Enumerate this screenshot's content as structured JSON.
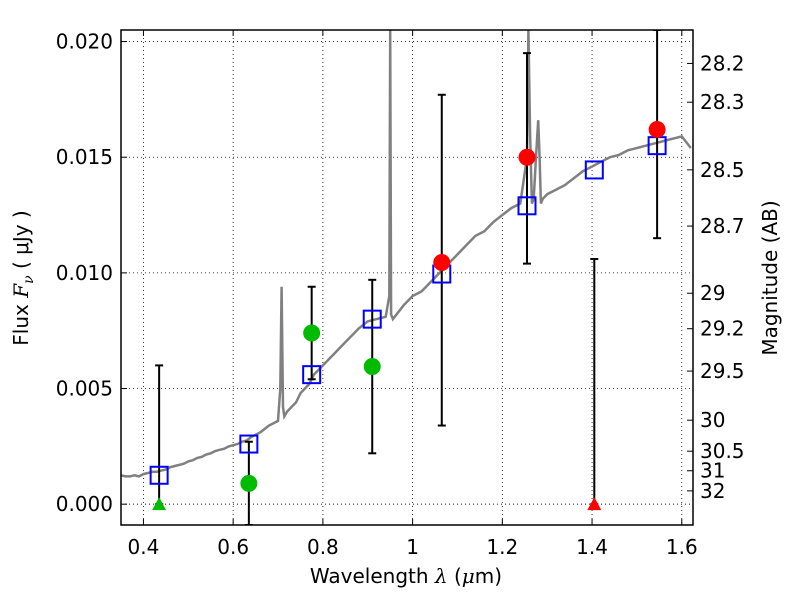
{
  "chart_data": {
    "type": "scatter",
    "title": "",
    "xlabel": {
      "prefix": "Wavelength",
      "var": "λ",
      "unit_open": " (",
      "unit_mu": "μ",
      "unit_rest": "m)"
    },
    "ylabel": {
      "prefix": "Flux",
      "var": "F",
      "sub": "ν",
      "unit": "( μJy )"
    },
    "y2label": "Magnitude (AB)",
    "xlim": [
      0.35,
      1.625
    ],
    "ylim": [
      -0.0009,
      0.0205
    ],
    "grid": true,
    "x_ticks": [
      {
        "v": 0.4,
        "label": "0.4"
      },
      {
        "v": 0.6,
        "label": "0.6"
      },
      {
        "v": 0.8,
        "label": "0.8"
      },
      {
        "v": 1.0,
        "label": "1"
      },
      {
        "v": 1.2,
        "label": "1.2"
      },
      {
        "v": 1.4,
        "label": "1.4"
      },
      {
        "v": 1.6,
        "label": "1.6"
      }
    ],
    "y_ticks": [
      {
        "v": 0.0,
        "label": "0.000"
      },
      {
        "v": 0.005,
        "label": "0.005"
      },
      {
        "v": 0.01,
        "label": "0.010"
      },
      {
        "v": 0.015,
        "label": "0.015"
      },
      {
        "v": 0.02,
        "label": "0.020"
      }
    ],
    "mag_ticks": [
      {
        "label": "28.2"
      },
      {
        "label": "28.3"
      },
      {
        "label": "28.5"
      },
      {
        "label": "28.7"
      },
      {
        "label": "29"
      },
      {
        "label": "29.2"
      },
      {
        "label": "29.5"
      },
      {
        "label": "30"
      },
      {
        "label": "30.5"
      },
      {
        "label": "31"
      },
      {
        "label": "32"
      }
    ],
    "series": [
      {
        "kind": "model_spectrum",
        "color": "#808080",
        "x": [
          0.35,
          0.36,
          0.37,
          0.38,
          0.39,
          0.4,
          0.41,
          0.42,
          0.43,
          0.44,
          0.45,
          0.46,
          0.47,
          0.48,
          0.49,
          0.5,
          0.51,
          0.52,
          0.53,
          0.54,
          0.55,
          0.56,
          0.57,
          0.58,
          0.59,
          0.6,
          0.61,
          0.62,
          0.63,
          0.64,
          0.65,
          0.66,
          0.67,
          0.68,
          0.69,
          0.7,
          0.705,
          0.708,
          0.711,
          0.714,
          0.72,
          0.73,
          0.74,
          0.75,
          0.76,
          0.77,
          0.78,
          0.79,
          0.8,
          0.82,
          0.84,
          0.86,
          0.88,
          0.9,
          0.92,
          0.94,
          0.948,
          0.95,
          0.952,
          0.956,
          0.96,
          0.98,
          1.0,
          1.02,
          1.04,
          1.06,
          1.08,
          1.1,
          1.12,
          1.14,
          1.16,
          1.18,
          1.2,
          1.22,
          1.24,
          1.255,
          1.258,
          1.262,
          1.266,
          1.27,
          1.275,
          1.28,
          1.283,
          1.286,
          1.29,
          1.3,
          1.32,
          1.34,
          1.36,
          1.38,
          1.4,
          1.42,
          1.44,
          1.46,
          1.48,
          1.5,
          1.52,
          1.54,
          1.56,
          1.58,
          1.6,
          1.62
        ],
        "y": [
          0.00125,
          0.0012,
          0.0012,
          0.00125,
          0.0012,
          0.0013,
          0.00135,
          0.0014,
          0.0014,
          0.00145,
          0.0015,
          0.0016,
          0.00165,
          0.0017,
          0.00175,
          0.00185,
          0.0019,
          0.002,
          0.00205,
          0.00215,
          0.0022,
          0.0023,
          0.00235,
          0.0024,
          0.0025,
          0.00255,
          0.0026,
          0.0027,
          0.00275,
          0.0029,
          0.003,
          0.0031,
          0.00325,
          0.0034,
          0.0035,
          0.0036,
          0.005,
          0.0094,
          0.0042,
          0.0038,
          0.004,
          0.0042,
          0.0044,
          0.0048,
          0.005,
          0.0052,
          0.0056,
          0.0058,
          0.006,
          0.0064,
          0.0068,
          0.0072,
          0.0076,
          0.0079,
          0.008,
          0.0081,
          0.009,
          0.0205,
          0.0082,
          0.008,
          0.0081,
          0.0086,
          0.009,
          0.0092,
          0.0096,
          0.01,
          0.0104,
          0.0108,
          0.0112,
          0.0116,
          0.0118,
          0.0122,
          0.0125,
          0.0128,
          0.013,
          0.015,
          0.0205,
          0.016,
          0.013,
          0.0132,
          0.015,
          0.0166,
          0.015,
          0.013,
          0.0132,
          0.0134,
          0.0136,
          0.0138,
          0.0141,
          0.0144,
          0.0146,
          0.0148,
          0.015,
          0.0151,
          0.0153,
          0.0154,
          0.0155,
          0.0156,
          0.0157,
          0.0158,
          0.0159,
          0.0154
        ]
      },
      {
        "kind": "model_points",
        "marker": "open-square",
        "color": "#0000ff",
        "x": [
          0.435,
          0.635,
          0.775,
          0.91,
          1.065,
          1.255,
          1.405,
          1.545
        ],
        "y": [
          0.00125,
          0.0026,
          0.0056,
          0.008,
          0.00995,
          0.0129,
          0.01445,
          0.0155
        ]
      },
      {
        "kind": "observed_green",
        "marker": "circle",
        "color": "#00bb00",
        "x": [
          0.635,
          0.775,
          0.91
        ],
        "y": [
          0.0009,
          0.0074,
          0.00595
        ]
      },
      {
        "kind": "observed_red",
        "marker": "circle",
        "color": "#ff0000",
        "x": [
          1.065,
          1.255,
          1.545
        ],
        "y": [
          0.01045,
          0.015,
          0.0162
        ]
      },
      {
        "kind": "upper_limit_green",
        "marker": "triangle",
        "color": "#00bb00",
        "x": [
          0.435
        ],
        "y": [
          0.0
        ]
      },
      {
        "kind": "upper_limit_red",
        "marker": "triangle",
        "color": "#ff0000",
        "x": [
          1.405
        ],
        "y": [
          0.0
        ]
      }
    ],
    "error_bars": [
      {
        "x": 0.435,
        "low": 0.0,
        "high": 0.006
      },
      {
        "x": 0.635,
        "low": -0.0009,
        "high": 0.0027
      },
      {
        "x": 0.775,
        "low": 0.0054,
        "high": 0.0094
      },
      {
        "x": 0.91,
        "low": 0.0022,
        "high": 0.0097
      },
      {
        "x": 1.065,
        "low": 0.0034,
        "high": 0.0177
      },
      {
        "x": 1.255,
        "low": 0.0104,
        "high": 0.0195
      },
      {
        "x": 1.405,
        "low": 0.0,
        "high": 0.0106
      },
      {
        "x": 1.545,
        "low": 0.0115,
        "high": 0.0205
      }
    ]
  }
}
